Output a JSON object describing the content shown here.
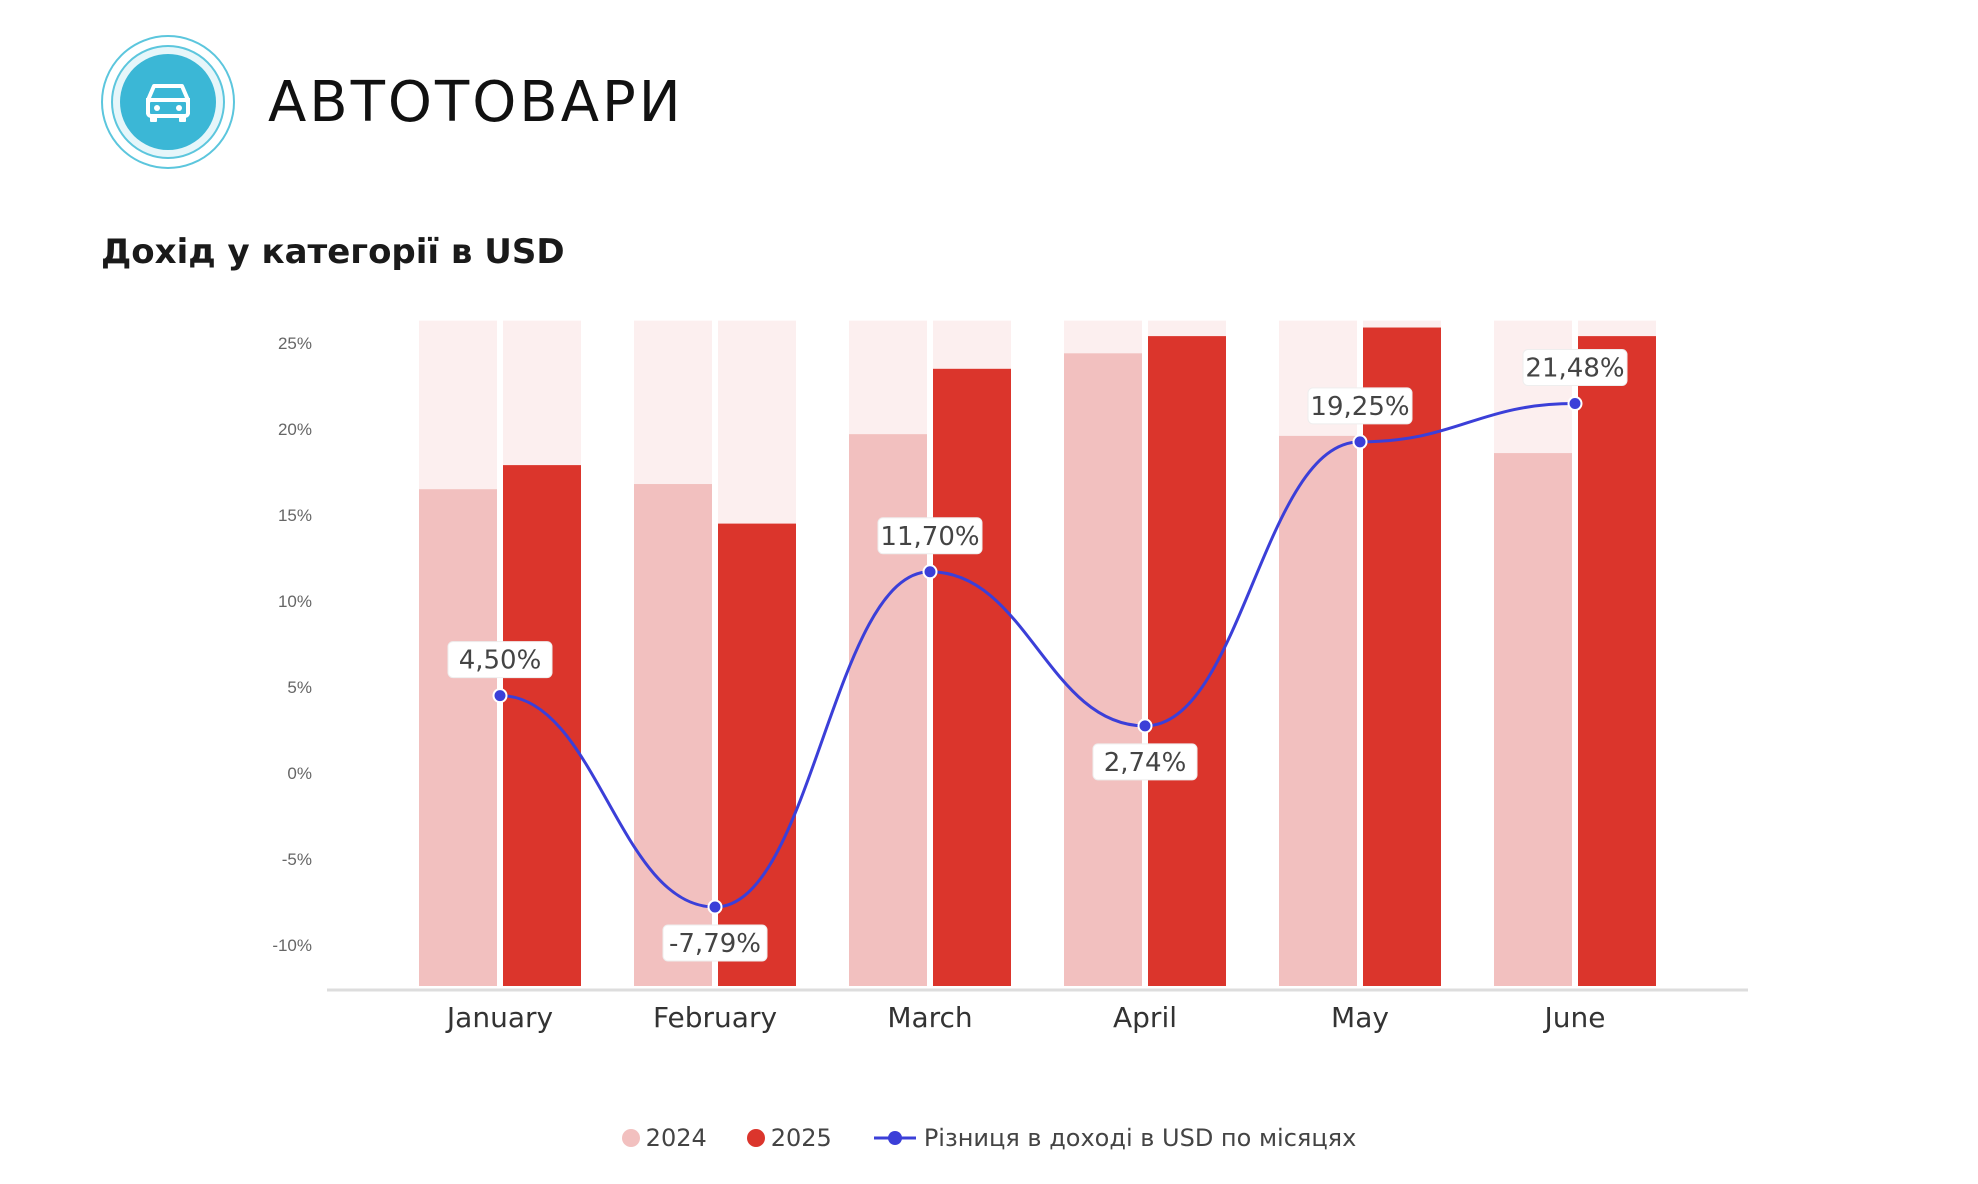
{
  "header": {
    "brand": "АВТОТОВАРИ",
    "logo_icon": "car-icon",
    "logo_color": "#3bb7d6"
  },
  "chart_data": {
    "type": "bar",
    "title": "Дохід у категорії в USD",
    "categories": [
      "January",
      "February",
      "March",
      "April",
      "May",
      "June"
    ],
    "y_ticks": [
      "25%",
      "20%",
      "15%",
      "10%",
      "5%",
      "0%",
      "-5%",
      "-10%"
    ],
    "ylim": [
      -12.5,
      26.3
    ],
    "grid": false,
    "legend_position": "bottom-center",
    "series": [
      {
        "name": "2024",
        "type": "bar",
        "color": "#f2c0bf",
        "values": [
          16.5,
          16.8,
          19.7,
          24.4,
          19.6,
          18.6
        ]
      },
      {
        "name": "2025",
        "type": "bar",
        "color": "#db352c",
        "values": [
          17.9,
          14.5,
          23.5,
          25.4,
          25.9,
          25.4
        ]
      },
      {
        "name": "Різниця в доході в USD по місяцях",
        "type": "line",
        "color": "#3b3fd8",
        "values": [
          4.5,
          -7.79,
          11.7,
          2.74,
          19.25,
          21.48
        ],
        "labels": [
          "4,50%",
          "-7,79%",
          "11,70%",
          "2,74%",
          "19,25%",
          "21,48%"
        ]
      }
    ],
    "background_band_color": "#fcefef"
  }
}
